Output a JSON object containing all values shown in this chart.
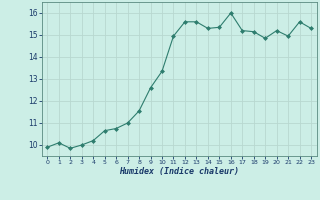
{
  "x": [
    0,
    1,
    2,
    3,
    4,
    5,
    6,
    7,
    8,
    9,
    10,
    11,
    12,
    13,
    14,
    15,
    16,
    17,
    18,
    19,
    20,
    21,
    22,
    23
  ],
  "y": [
    9.9,
    10.1,
    9.85,
    10.0,
    10.2,
    10.65,
    10.75,
    11.0,
    11.55,
    12.6,
    13.35,
    14.95,
    15.6,
    15.6,
    15.3,
    15.35,
    16.0,
    15.2,
    15.15,
    14.85,
    15.2,
    14.95,
    15.6,
    15.3
  ],
  "xlabel": "Humidex (Indice chaleur)",
  "xlim": [
    -0.5,
    23.5
  ],
  "ylim": [
    9.5,
    16.5
  ],
  "yticks": [
    10,
    11,
    12,
    13,
    14,
    15,
    16
  ],
  "xticks": [
    0,
    1,
    2,
    3,
    4,
    5,
    6,
    7,
    8,
    9,
    10,
    11,
    12,
    13,
    14,
    15,
    16,
    17,
    18,
    19,
    20,
    21,
    22,
    23
  ],
  "line_color": "#2e7d6e",
  "bg_color": "#cceee6",
  "grid_color": "#b8d8d0",
  "xlabel_color": "#1a3a6a",
  "tick_color": "#1a3a6a",
  "axes_color": "#5a8a80"
}
